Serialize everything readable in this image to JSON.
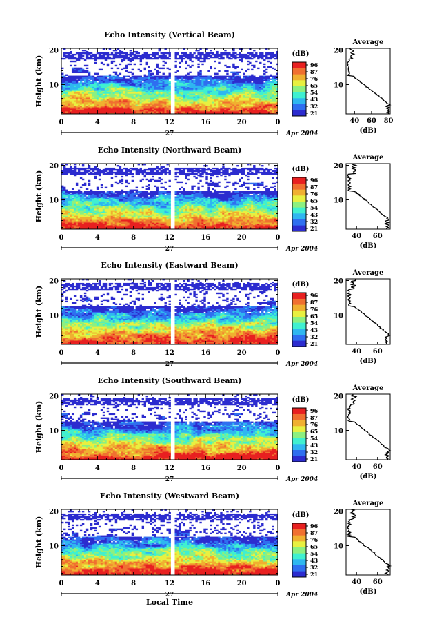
{
  "figure": {
    "date_label": "Apr 2004",
    "day_label": "27",
    "bottom_xlabel": "Local Time",
    "height_ylabel": "Height (km)",
    "profile_title": "Average",
    "profile_xlabel": "(dB)",
    "colorbar_title": "(dB)",
    "colorbar_ticks": [
      "96",
      "87",
      "76",
      "65",
      "54",
      "43",
      "32",
      "21"
    ],
    "colorbar_colors": [
      "#2c2ccf",
      "#2f6ff0",
      "#2fb7f0",
      "#3ff0d0",
      "#8cf080",
      "#e8f040",
      "#f0b030",
      "#f07030",
      "#e82020"
    ]
  },
  "chart_data": [
    {
      "type": "heatmap",
      "title": "Echo Intensity (Vertical Beam)",
      "xlabel": "",
      "ylabel": "Height (km)",
      "x_ticks": [
        "0",
        "4",
        "8",
        "12",
        "16",
        "20",
        "0"
      ],
      "xlim_hours": [
        0,
        24
      ],
      "y_ticks": [
        "10",
        "20"
      ],
      "ylim_km": [
        1.5,
        20.5
      ],
      "data_gap_hour": 12.3,
      "colorbar_range_dB": [
        21,
        96
      ],
      "profile": {
        "title": "Average",
        "xlabel": "(dB)",
        "x_ticks": [
          "40",
          "60",
          "80"
        ],
        "xlim": [
          30,
          82
        ],
        "y_ticks": [
          "10",
          "20"
        ]
      }
    },
    {
      "type": "heatmap",
      "title": "Echo Intensity (Northward Beam)",
      "xlabel": "",
      "ylabel": "Height (km)",
      "x_ticks": [
        "0",
        "4",
        "8",
        "12",
        "16",
        "20",
        "0"
      ],
      "xlim_hours": [
        0,
        24
      ],
      "y_ticks": [
        "10",
        "20"
      ],
      "ylim_km": [
        1.5,
        20.5
      ],
      "data_gap_hour": 12.3,
      "colorbar_range_dB": [
        21,
        96
      ],
      "profile": {
        "title": "Average",
        "xlabel": "(dB)",
        "x_ticks": [
          "40",
          "60"
        ],
        "xlim": [
          30,
          72
        ],
        "y_ticks": [
          "10",
          "20"
        ]
      }
    },
    {
      "type": "heatmap",
      "title": "Echo Intensity (Eastward Beam)",
      "xlabel": "",
      "ylabel": "Height (km)",
      "x_ticks": [
        "0",
        "4",
        "8",
        "12",
        "16",
        "20",
        "0"
      ],
      "xlim_hours": [
        0,
        24
      ],
      "y_ticks": [
        "10",
        "20"
      ],
      "ylim_km": [
        1.5,
        20.5
      ],
      "data_gap_hour": 12.3,
      "colorbar_range_dB": [
        21,
        96
      ],
      "profile": {
        "title": "Average",
        "xlabel": "(dB)",
        "x_ticks": [
          "40",
          "60"
        ],
        "xlim": [
          30,
          72
        ],
        "y_ticks": [
          "10",
          "20"
        ]
      }
    },
    {
      "type": "heatmap",
      "title": "Echo Intensity (Southward Beam)",
      "xlabel": "",
      "ylabel": "Height (km)",
      "x_ticks": [
        "0",
        "4",
        "8",
        "12",
        "16",
        "20",
        "0"
      ],
      "xlim_hours": [
        0,
        24
      ],
      "y_ticks": [
        "10",
        "20"
      ],
      "ylim_km": [
        1.5,
        20.5
      ],
      "data_gap_hour": 12.3,
      "colorbar_range_dB": [
        21,
        96
      ],
      "profile": {
        "title": "Average",
        "xlabel": "(dB)",
        "x_ticks": [
          "40",
          "60"
        ],
        "xlim": [
          30,
          72
        ],
        "y_ticks": [
          "10",
          "20"
        ]
      }
    },
    {
      "type": "heatmap",
      "title": "Echo Intensity (Westward Beam)",
      "xlabel": "Local Time",
      "ylabel": "Height (km)",
      "x_ticks": [
        "0",
        "4",
        "8",
        "12",
        "16",
        "20",
        "0"
      ],
      "xlim_hours": [
        0,
        24
      ],
      "y_ticks": [
        "10",
        "20"
      ],
      "ylim_km": [
        1.5,
        20.5
      ],
      "data_gap_hour": 12.3,
      "colorbar_range_dB": [
        21,
        96
      ],
      "profile": {
        "title": "Average",
        "xlabel": "(dB)",
        "x_ticks": [
          "40",
          "60"
        ],
        "xlim": [
          30,
          72
        ],
        "y_ticks": [
          "10",
          "20"
        ]
      }
    }
  ]
}
